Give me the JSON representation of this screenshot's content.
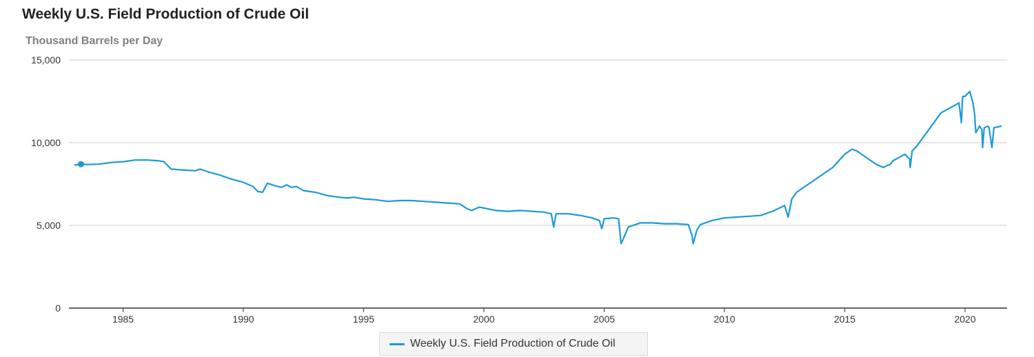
{
  "chart_data": {
    "type": "line",
    "title": "Weekly U.S. Field Production of Crude Oil",
    "subtitle": "Thousand Barrels per Day",
    "xlabel": "",
    "ylabel": "",
    "x_range": [
      1982.75,
      2021.75
    ],
    "ylim": [
      0,
      15000
    ],
    "y_ticks": [
      0,
      5000,
      10000,
      15000
    ],
    "y_tick_labels": [
      "0",
      "5,000",
      "10,000",
      "15,000"
    ],
    "x_ticks": [
      1985,
      1990,
      1995,
      2000,
      2005,
      2010,
      2015,
      2020
    ],
    "x_tick_labels": [
      "1985",
      "1990",
      "1995",
      "2000",
      "2005",
      "2010",
      "2015",
      "2020"
    ],
    "grid": "horizontal",
    "legend_position": "bottom-center",
    "colors": {
      "series": "#1a9ad6",
      "grid": "#cccccc",
      "axis": "#333333"
    },
    "series": [
      {
        "name": "Weekly U.S. Field Production of Crude Oil",
        "marker_at_start": [
          1983.25,
          8700
        ],
        "points": [
          [
            1983.0,
            8650
          ],
          [
            1983.25,
            8700
          ],
          [
            1983.5,
            8680
          ],
          [
            1984.0,
            8700
          ],
          [
            1984.5,
            8800
          ],
          [
            1985.0,
            8850
          ],
          [
            1985.5,
            8950
          ],
          [
            1986.0,
            8950
          ],
          [
            1986.5,
            8900
          ],
          [
            1986.7,
            8850
          ],
          [
            1987.0,
            8400
          ],
          [
            1987.5,
            8350
          ],
          [
            1988.0,
            8300
          ],
          [
            1988.2,
            8400
          ],
          [
            1988.5,
            8250
          ],
          [
            1989.0,
            8050
          ],
          [
            1989.5,
            7800
          ],
          [
            1990.0,
            7600
          ],
          [
            1990.4,
            7350
          ],
          [
            1990.6,
            7050
          ],
          [
            1990.8,
            7000
          ],
          [
            1991.0,
            7550
          ],
          [
            1991.3,
            7400
          ],
          [
            1991.6,
            7300
          ],
          [
            1991.8,
            7450
          ],
          [
            1992.0,
            7300
          ],
          [
            1992.2,
            7350
          ],
          [
            1992.5,
            7100
          ],
          [
            1993.0,
            7000
          ],
          [
            1993.5,
            6800
          ],
          [
            1994.0,
            6700
          ],
          [
            1994.3,
            6650
          ],
          [
            1994.6,
            6700
          ],
          [
            1995.0,
            6600
          ],
          [
            1995.5,
            6550
          ],
          [
            1996.0,
            6450
          ],
          [
            1996.5,
            6500
          ],
          [
            1997.0,
            6500
          ],
          [
            1997.5,
            6450
          ],
          [
            1998.0,
            6400
          ],
          [
            1998.5,
            6350
          ],
          [
            1999.0,
            6300
          ],
          [
            1999.3,
            6000
          ],
          [
            1999.5,
            5900
          ],
          [
            1999.8,
            6100
          ],
          [
            2000.0,
            6050
          ],
          [
            2000.5,
            5900
          ],
          [
            2001.0,
            5850
          ],
          [
            2001.5,
            5900
          ],
          [
            2002.0,
            5850
          ],
          [
            2002.5,
            5800
          ],
          [
            2002.8,
            5700
          ],
          [
            2002.9,
            4900
          ],
          [
            2003.0,
            5700
          ],
          [
            2003.5,
            5700
          ],
          [
            2004.0,
            5600
          ],
          [
            2004.5,
            5450
          ],
          [
            2004.8,
            5300
          ],
          [
            2004.9,
            4800
          ],
          [
            2005.0,
            5400
          ],
          [
            2005.4,
            5450
          ],
          [
            2005.6,
            5400
          ],
          [
            2005.7,
            3900
          ],
          [
            2005.8,
            4200
          ],
          [
            2006.0,
            4900
          ],
          [
            2006.5,
            5150
          ],
          [
            2007.0,
            5150
          ],
          [
            2007.5,
            5100
          ],
          [
            2008.0,
            5100
          ],
          [
            2008.5,
            5050
          ],
          [
            2008.65,
            4400
          ],
          [
            2008.7,
            3900
          ],
          [
            2008.85,
            4700
          ],
          [
            2009.0,
            5050
          ],
          [
            2009.5,
            5300
          ],
          [
            2010.0,
            5450
          ],
          [
            2010.5,
            5500
          ],
          [
            2011.0,
            5550
          ],
          [
            2011.5,
            5600
          ],
          [
            2012.0,
            5850
          ],
          [
            2012.5,
            6200
          ],
          [
            2012.65,
            5500
          ],
          [
            2012.8,
            6600
          ],
          [
            2013.0,
            7000
          ],
          [
            2013.5,
            7500
          ],
          [
            2014.0,
            8000
          ],
          [
            2014.5,
            8500
          ],
          [
            2015.0,
            9300
          ],
          [
            2015.3,
            9600
          ],
          [
            2015.5,
            9500
          ],
          [
            2016.0,
            9000
          ],
          [
            2016.3,
            8700
          ],
          [
            2016.6,
            8500
          ],
          [
            2016.9,
            8700
          ],
          [
            2017.0,
            8900
          ],
          [
            2017.5,
            9300
          ],
          [
            2017.7,
            9000
          ],
          [
            2017.72,
            8500
          ],
          [
            2017.8,
            9500
          ],
          [
            2018.0,
            9800
          ],
          [
            2018.5,
            10800
          ],
          [
            2019.0,
            11800
          ],
          [
            2019.5,
            12200
          ],
          [
            2019.75,
            12400
          ],
          [
            2019.85,
            11200
          ],
          [
            2019.9,
            12800
          ],
          [
            2020.0,
            12800
          ],
          [
            2020.2,
            13100
          ],
          [
            2020.33,
            12400
          ],
          [
            2020.4,
            11700
          ],
          [
            2020.45,
            10600
          ],
          [
            2020.6,
            11000
          ],
          [
            2020.7,
            10800
          ],
          [
            2020.73,
            9700
          ],
          [
            2020.8,
            10900
          ],
          [
            2020.95,
            11000
          ],
          [
            2021.0,
            10900
          ],
          [
            2021.12,
            9700
          ],
          [
            2021.2,
            10900
          ],
          [
            2021.5,
            11000
          ]
        ]
      }
    ]
  }
}
